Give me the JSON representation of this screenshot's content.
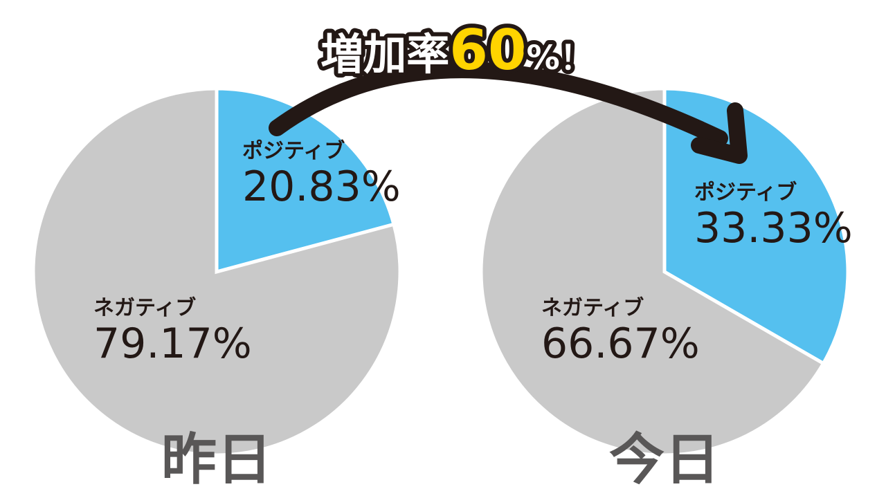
{
  "chart_data": [
    {
      "type": "pie",
      "title": "昨日",
      "categories": [
        "ポジティブ",
        "ネガティブ"
      ],
      "values": [
        20.83,
        79.17
      ],
      "value_labels": [
        "20.83%",
        "79.17%"
      ],
      "colors": [
        "#55c0ef",
        "#c9c9c9"
      ]
    },
    {
      "type": "pie",
      "title": "今日",
      "categories": [
        "ポジティブ",
        "ネガティブ"
      ],
      "values": [
        33.33,
        66.67
      ],
      "value_labels": [
        "33.33%",
        "66.67%"
      ],
      "colors": [
        "#55c0ef",
        "#c9c9c9"
      ]
    }
  ],
  "annotation": {
    "parts": [
      "増加率",
      "60",
      "%！"
    ]
  }
}
